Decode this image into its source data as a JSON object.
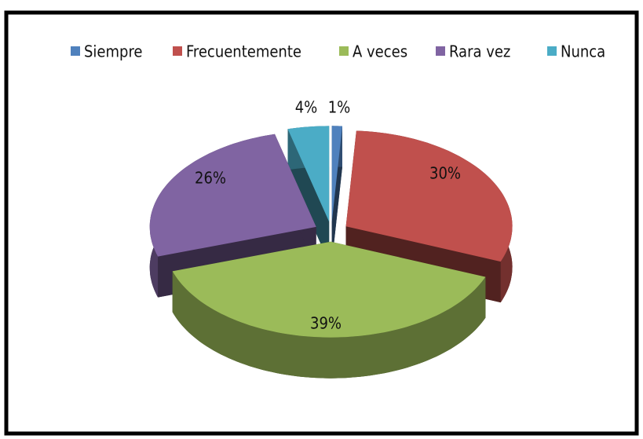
{
  "chart_data": {
    "type": "pie",
    "categories": [
      "Siempre",
      "Frecuentemente",
      "A veces",
      "Rara vez",
      "Nunca"
    ],
    "values": [
      1,
      30,
      39,
      26,
      4
    ],
    "value_labels": [
      "1%",
      "30%",
      "39%",
      "26%",
      "4%"
    ],
    "colors": [
      "#4f81bd",
      "#c0504d",
      "#9bbb59",
      "#8064a2",
      "#4bacc6"
    ],
    "legend": "top"
  }
}
